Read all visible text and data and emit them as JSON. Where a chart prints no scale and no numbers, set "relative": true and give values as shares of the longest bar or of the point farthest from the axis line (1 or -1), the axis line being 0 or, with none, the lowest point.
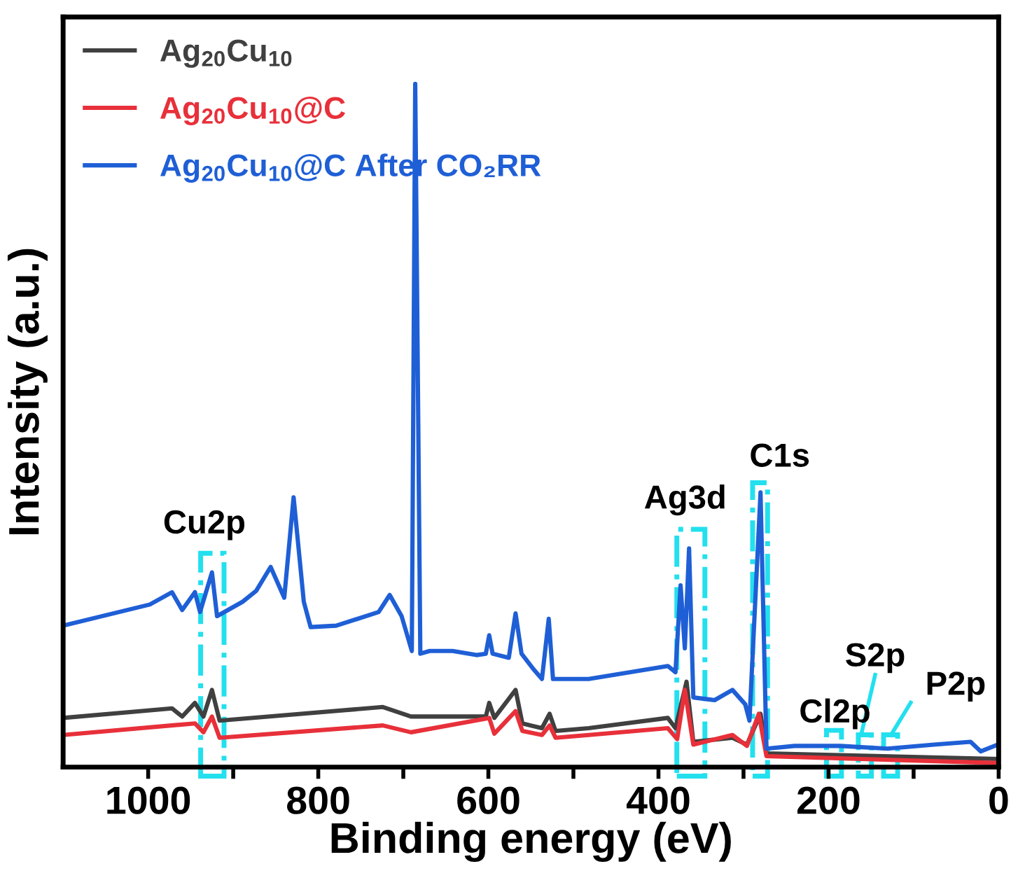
{
  "chart_data": {
    "type": "line",
    "relative": true,
    "xlabel": "Binding energy (eV)",
    "ylabel": "Intensity (a.u.)",
    "xlim": [
      1100,
      0
    ],
    "xticks": [
      1000,
      {
        "value": 900,
        "label": null
      },
      800,
      {
        "value": 700,
        "label": null
      },
      600,
      {
        "value": 500,
        "label": null
      },
      400,
      {
        "value": 300,
        "label": null
      },
      200,
      {
        "value": 100,
        "label": null
      },
      0
    ],
    "legend": "top left",
    "grid": false,
    "line_style": "solid",
    "marker": "none",
    "series": [
      {
        "name": "Ag$_{20}$Cu$_{10}$",
        "color": "#404040",
        "x": [
          1100,
          972,
          960,
          945,
          935,
          925,
          916,
          724,
          691,
          603,
          599,
          593,
          568,
          560,
          537,
          528,
          521,
          482,
          389,
          380,
          367,
          359,
          313,
          296,
          280,
          273,
          1
        ],
        "values": [
          0.072,
          0.086,
          0.074,
          0.094,
          0.074,
          0.113,
          0.068,
          0.088,
          0.074,
          0.074,
          0.094,
          0.072,
          0.113,
          0.064,
          0.057,
          0.078,
          0.053,
          0.057,
          0.072,
          0.057,
          0.125,
          0.037,
          0.043,
          0.033,
          0.078,
          0.02,
          0.012
        ]
      },
      {
        "name": "Ag$_{20}$Cu$_{10}$@C",
        "color": "#e8303a",
        "x": [
          1100,
          945,
          935,
          925,
          916,
          724,
          691,
          599,
          593,
          568,
          560,
          537,
          528,
          521,
          482,
          389,
          378,
          369,
          359,
          313,
          296,
          282,
          273,
          1
        ],
        "values": [
          0.047,
          0.064,
          0.051,
          0.074,
          0.043,
          0.061,
          0.051,
          0.072,
          0.049,
          0.082,
          0.053,
          0.047,
          0.061,
          0.043,
          0.047,
          0.057,
          0.041,
          0.113,
          0.033,
          0.047,
          0.031,
          0.078,
          0.016,
          0.006
        ]
      },
      {
        "name": "Ag$_{20}$Cu$_{10}$@C After CO₂RR",
        "color": "#1f5fd6",
        "x": [
          1100,
          998,
          972,
          960,
          945,
          939,
          925,
          919,
          889,
          873,
          856,
          840,
          829,
          817,
          809,
          779,
          729,
          716,
          702,
          690,
          686,
          680,
          669,
          642,
          614,
          603,
          599,
          595,
          576,
          568,
          561,
          548,
          537,
          529,
          524,
          482,
          389,
          380,
          374,
          369,
          364,
          359,
          334,
          313,
          298,
          293,
          280,
          273,
          240,
          186,
          131,
          76,
          33,
          21,
          1
        ],
        "values": [
          0.207,
          0.238,
          0.256,
          0.23,
          0.256,
          0.227,
          0.285,
          0.221,
          0.242,
          0.258,
          0.293,
          0.248,
          0.395,
          0.242,
          0.205,
          0.207,
          0.227,
          0.252,
          0.221,
          0.17,
          1.0,
          0.166,
          0.17,
          0.17,
          0.164,
          0.166,
          0.193,
          0.166,
          0.16,
          0.225,
          0.166,
          0.145,
          0.129,
          0.217,
          0.129,
          0.129,
          0.148,
          0.139,
          0.266,
          0.174,
          0.32,
          0.102,
          0.098,
          0.113,
          0.092,
          0.068,
          0.402,
          0.027,
          0.031,
          0.031,
          0.027,
          0.033,
          0.037,
          0.023,
          0.033
        ]
      }
    ],
    "annotations": [
      "Cu2p",
      "Ag3d",
      "C1s",
      "Cl2p",
      "S2p",
      "P2p"
    ]
  }
}
